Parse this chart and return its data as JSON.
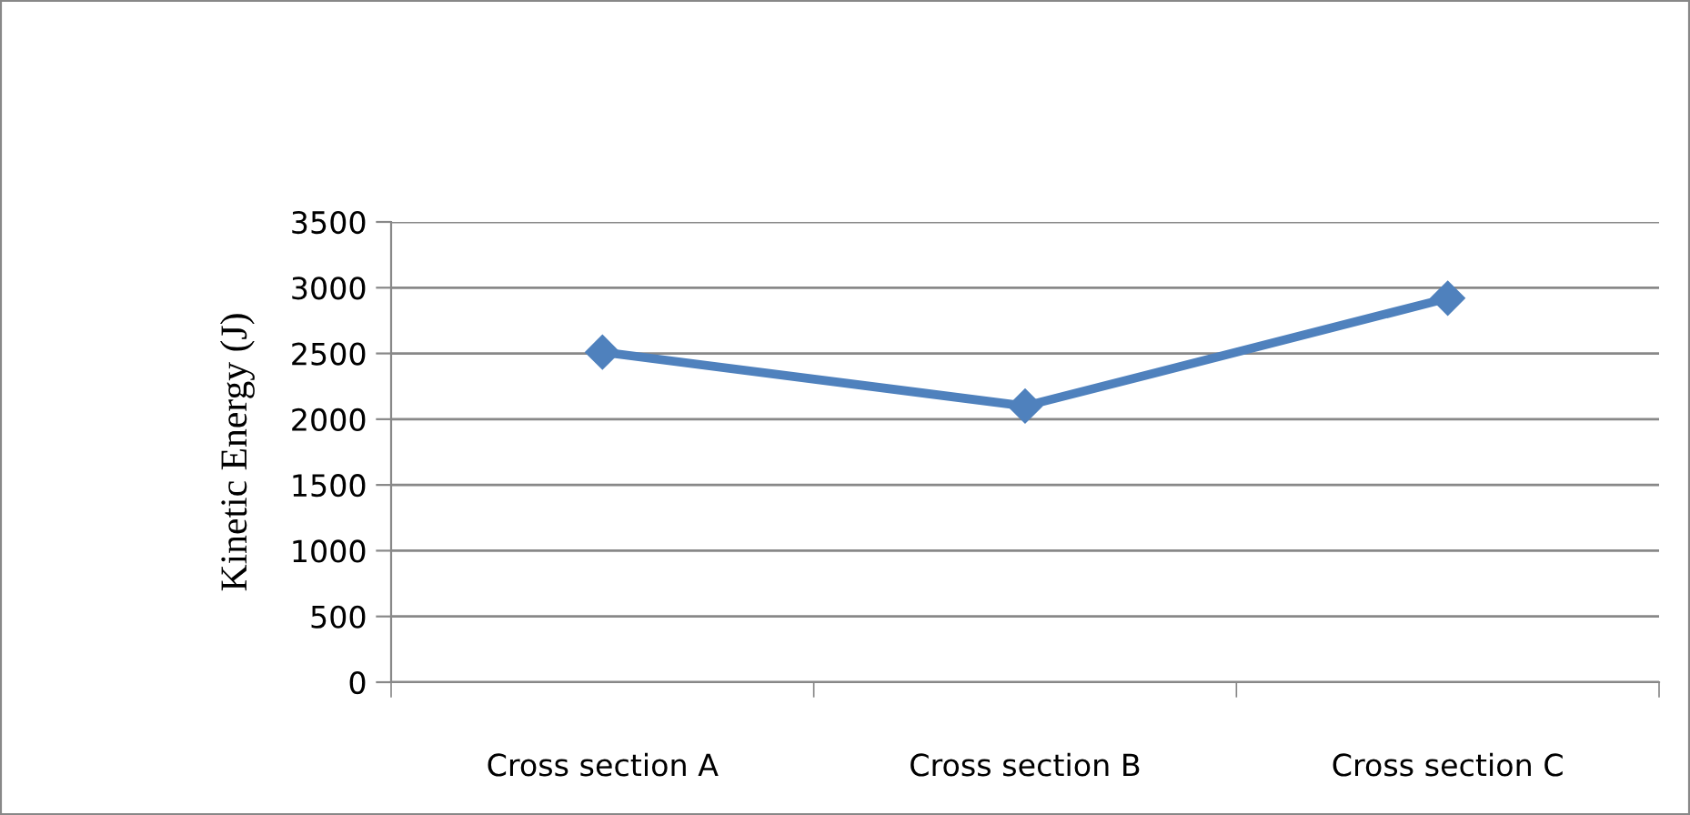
{
  "chart_data": {
    "type": "line",
    "ylabel": "Kinetic Energy (J)",
    "categories": [
      "Cross section A",
      "Cross section B",
      "Cross section C"
    ],
    "series": [
      {
        "color": "#4f81bd",
        "values": [
          2510,
          2100,
          2920
        ]
      }
    ],
    "ylim": [
      0,
      3500
    ],
    "yticks": [
      0,
      500,
      1000,
      1500,
      2000,
      2500,
      3000,
      3500
    ],
    "grid": "y",
    "marker": "diamond",
    "line_style": "solid",
    "legend": false
  }
}
